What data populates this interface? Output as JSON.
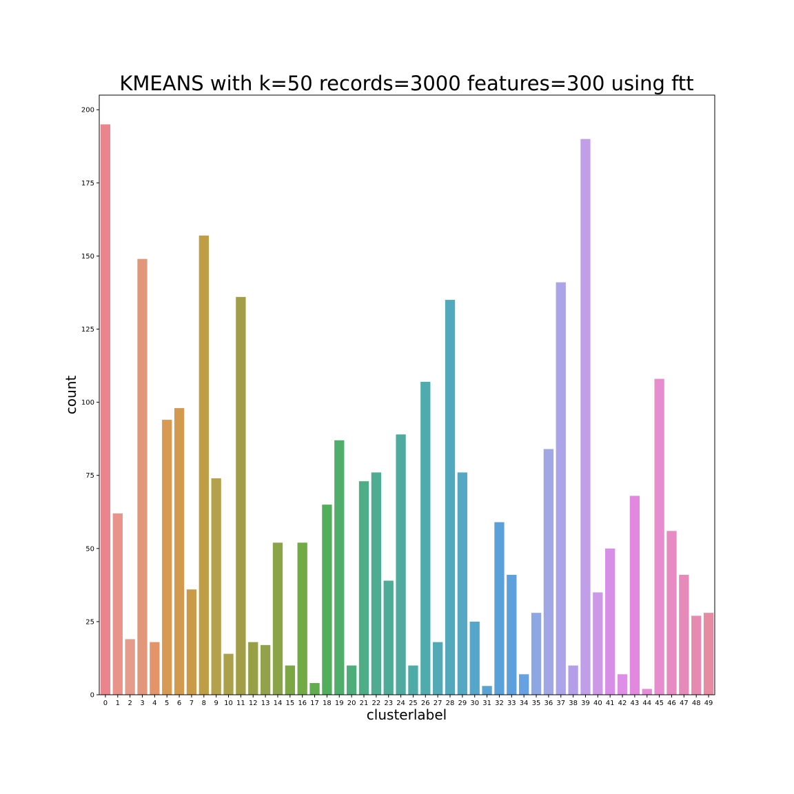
{
  "chart_data": {
    "type": "bar",
    "title": "KMEANS with k=50 records=3000 features=300 using ftt",
    "xlabel": "clusterlabel",
    "ylabel": "count",
    "ylim": [
      0,
      205
    ],
    "yticks": [
      0,
      25,
      50,
      75,
      100,
      125,
      150,
      175,
      200
    ],
    "grid": false,
    "categories": [
      "0",
      "1",
      "2",
      "3",
      "4",
      "5",
      "6",
      "7",
      "8",
      "9",
      "10",
      "11",
      "12",
      "13",
      "14",
      "15",
      "16",
      "17",
      "18",
      "19",
      "20",
      "21",
      "22",
      "23",
      "24",
      "25",
      "26",
      "27",
      "28",
      "29",
      "30",
      "31",
      "32",
      "33",
      "34",
      "35",
      "36",
      "37",
      "38",
      "39",
      "40",
      "41",
      "42",
      "43",
      "44",
      "45",
      "46",
      "47",
      "48",
      "49"
    ],
    "values": [
      195,
      62,
      19,
      149,
      18,
      94,
      98,
      36,
      157,
      74,
      14,
      136,
      18,
      17,
      52,
      10,
      52,
      4,
      65,
      87,
      10,
      73,
      76,
      39,
      89,
      10,
      107,
      18,
      135,
      76,
      25,
      3,
      59,
      41,
      7,
      28,
      84,
      141,
      10,
      190,
      35,
      50,
      7,
      68,
      2,
      108,
      56,
      41,
      27,
      28
    ],
    "colors": [
      "#e9858b",
      "#e9948b",
      "#e69c8a",
      "#e2967a",
      "#e39569",
      "#d89a52",
      "#d29a4f",
      "#c99b46",
      "#bf9d45",
      "#b5a04c",
      "#aba14a",
      "#a29e47",
      "#98a046",
      "#92a24a",
      "#8aa447",
      "#7ba744",
      "#72ab46",
      "#61ad4d",
      "#51ae5a",
      "#4fae6c",
      "#4eae7b",
      "#4dad86",
      "#4eac90",
      "#4eab98",
      "#4faba0",
      "#4faba8",
      "#50abae",
      "#51aab5",
      "#52a9bc",
      "#54a8c2",
      "#56a6c9",
      "#58a3d1",
      "#5aa1d8",
      "#5ea0db",
      "#66a1e1",
      "#8ca7e1",
      "#a1a6e4",
      "#aca4e9",
      "#b39fe8",
      "#c19fe8",
      "#cb99e5",
      "#d68ee7",
      "#de8ee7",
      "#e288de",
      "#e68bd7",
      "#e78ccd",
      "#e78bc3",
      "#e68bb9",
      "#e68aaf",
      "#e68ba2"
    ]
  }
}
